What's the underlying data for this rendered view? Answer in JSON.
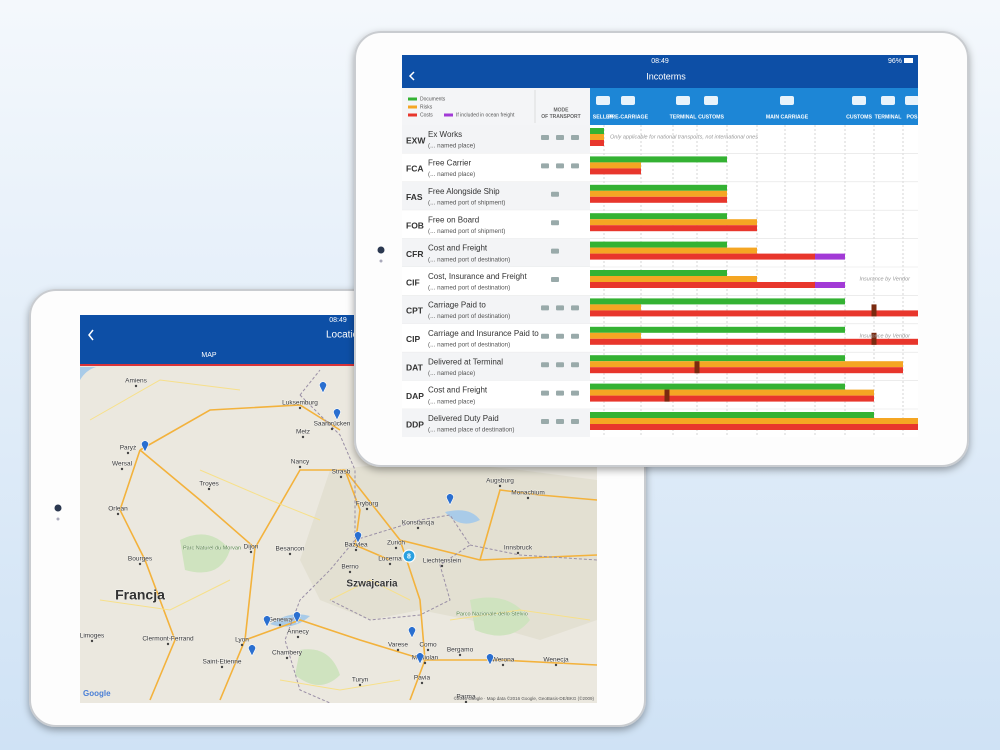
{
  "map_tablet": {
    "status_time": "08:49",
    "title": "Location",
    "tab": "MAP",
    "labels": [
      "Amiens",
      "Luksemburg",
      "Saarbrücken",
      "Paryż",
      "Wersal",
      "Metz",
      "Nancy",
      "Troyes",
      "Strasb",
      "Fryburg",
      "Bazylea",
      "Orlean",
      "Konstancja",
      "Zurich",
      "Liechtenstein",
      "Augsburg",
      "Monachium",
      "Dijon",
      "Besancon",
      "Berno",
      "Lucerna",
      "Szwajcaria",
      "Bourges",
      "Innsbruck",
      "Francja",
      "Genewa",
      "Annecy",
      "Lyon",
      "Clermont-Ferrand",
      "Limoges",
      "Chambery",
      "Saint-Etienne",
      "Varese",
      "Como",
      "Mediolan",
      "Bergamo",
      "Werona",
      "Wenecja",
      "Turyn",
      "Pavia",
      "Parc Naturel du Morvan",
      "Parco Nazionale dello Stelvio",
      "Parma"
    ],
    "cluster": 8,
    "google": "Google",
    "attribution": "©2016 Google · Map data ©2016 Google, GeoBasis-DE/BKG (©2009)"
  },
  "incoterms_tablet": {
    "status_time": "08:49",
    "battery": "96%",
    "title": "Incoterms",
    "legend": [
      "Documents",
      "Risks",
      "Costs",
      "If included in ocean freight"
    ],
    "mode_header": [
      "MODE",
      "OF TRANSPORT"
    ],
    "stages": [
      "SELLER",
      "PRE-CARRIAGE",
      "TERMINAL",
      "CUSTOMS",
      "MAIN CARRIAGE",
      "CUSTOMS",
      "TERMINAL",
      "POS"
    ],
    "rows": [
      {
        "code": "EXW",
        "name": "Ex Works",
        "place": "(... named place)",
        "note": "Only applicable for national transports, not international ones"
      },
      {
        "code": "FCA",
        "name": "Free Carrier",
        "place": "(... named place)"
      },
      {
        "code": "FAS",
        "name": "Free Alongside Ship",
        "place": "(... named port of shipment)"
      },
      {
        "code": "FOB",
        "name": "Free on Board",
        "place": "(... named port of shipment)"
      },
      {
        "code": "CFR",
        "name": "Cost and Freight",
        "place": "(... named port of destination)"
      },
      {
        "code": "CIF",
        "name": "Cost, Insurance and Freight",
        "place": "(... named port of destination)",
        "note": "Insurance by Vendor"
      },
      {
        "code": "CPT",
        "name": "Carriage Paid to",
        "place": "(... named port of destination)"
      },
      {
        "code": "CIP",
        "name": "Carriage and Insurance Paid to",
        "place": "(... named port of destination)",
        "note": "Insurance by Vendor"
      },
      {
        "code": "DAT",
        "name": "Delivered at Terminal",
        "place": "(... named place)"
      },
      {
        "code": "DAP",
        "name": "Cost and Freight",
        "place": "(... named place)"
      },
      {
        "code": "DDP",
        "name": "Delivered Duty Paid",
        "place": "(... named place of destination)"
      }
    ]
  }
}
